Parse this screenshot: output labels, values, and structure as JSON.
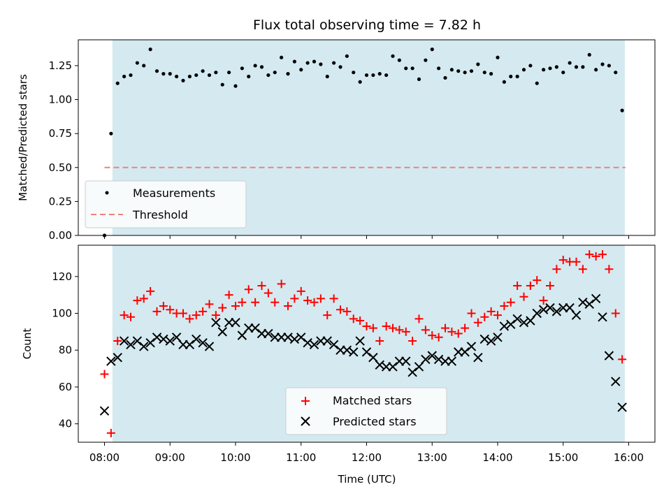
{
  "chart_data": [
    {
      "type": "scatter",
      "title": "Flux total observing time = 7.82 h",
      "xlabel": "",
      "ylabel": "Matched/Predicted stars",
      "xlim": [
        7.6,
        16.4
      ],
      "ylim": [
        0,
        1.44
      ],
      "yticks": [
        0,
        0.25,
        0.5,
        0.75,
        1.0,
        1.25
      ],
      "ytick_labels": [
        "0.00",
        "0.25",
        "0.50",
        "0.75",
        "1.00",
        "1.25"
      ],
      "shaded_span": [
        8.12,
        15.94
      ],
      "shade_color": "#d4eaf0",
      "threshold": {
        "name": "Threshold",
        "y": 0.5,
        "x_range": [
          8.0,
          15.95
        ],
        "color": "#f08080",
        "style": "dashed"
      },
      "legend_position": "lower-left",
      "series": [
        {
          "name": "Measurements",
          "marker": "dot",
          "color": "#000000",
          "x": [
            8.0,
            8.1,
            8.2,
            8.3,
            8.4,
            8.5,
            8.6,
            8.7,
            8.8,
            8.9,
            9.0,
            9.1,
            9.2,
            9.3,
            9.4,
            9.5,
            9.6,
            9.7,
            9.8,
            9.9,
            10.0,
            10.1,
            10.2,
            10.3,
            10.4,
            10.5,
            10.6,
            10.7,
            10.8,
            10.9,
            11.0,
            11.1,
            11.2,
            11.3,
            11.4,
            11.5,
            11.6,
            11.7,
            11.8,
            11.9,
            12.0,
            12.1,
            12.2,
            12.3,
            12.4,
            12.5,
            12.6,
            12.7,
            12.8,
            12.9,
            13.0,
            13.1,
            13.2,
            13.3,
            13.4,
            13.5,
            13.6,
            13.7,
            13.8,
            13.9,
            14.0,
            14.1,
            14.2,
            14.3,
            14.4,
            14.5,
            14.6,
            14.7,
            14.8,
            14.9,
            15.0,
            15.1,
            15.2,
            15.3,
            15.4,
            15.5,
            15.6,
            15.7,
            15.8,
            15.9
          ],
          "y": [
            0.0,
            0.75,
            1.12,
            1.17,
            1.18,
            1.27,
            1.25,
            1.37,
            1.21,
            1.19,
            1.19,
            1.17,
            1.14,
            1.17,
            1.18,
            1.21,
            1.18,
            1.2,
            1.11,
            1.2,
            1.1,
            1.23,
            1.17,
            1.25,
            1.24,
            1.18,
            1.2,
            1.31,
            1.19,
            1.28,
            1.22,
            1.27,
            1.28,
            1.26,
            1.17,
            1.27,
            1.24,
            1.32,
            1.2,
            1.13,
            1.18,
            1.18,
            1.19,
            1.18,
            1.32,
            1.29,
            1.23,
            1.23,
            1.15,
            1.29,
            1.37,
            1.23,
            1.16,
            1.22,
            1.21,
            1.2,
            1.21,
            1.26,
            1.2,
            1.19,
            1.31,
            1.13,
            1.17,
            1.17,
            1.22,
            1.25,
            1.12,
            1.22,
            1.23,
            1.24,
            1.2,
            1.27,
            1.24,
            1.24,
            1.33,
            1.22,
            1.26,
            1.25,
            1.2,
            0.92
          ]
        }
      ]
    },
    {
      "type": "scatter",
      "title": "",
      "xlabel": "Time (UTC)",
      "ylabel": "Count",
      "xlim": [
        7.6,
        16.4
      ],
      "ylim": [
        30,
        137
      ],
      "xticks": [
        8,
        9,
        10,
        11,
        12,
        13,
        14,
        15,
        16
      ],
      "xtick_labels": [
        "08:00",
        "09:00",
        "10:00",
        "11:00",
        "12:00",
        "13:00",
        "14:00",
        "15:00",
        "16:00"
      ],
      "yticks": [
        40,
        60,
        80,
        100,
        120
      ],
      "ytick_labels": [
        "40",
        "60",
        "80",
        "100",
        "120"
      ],
      "shaded_span": [
        8.12,
        15.94
      ],
      "legend_position": "lower-center",
      "series": [
        {
          "name": "Matched stars",
          "marker": "plus",
          "color": "#ff0000",
          "x": [
            8.0,
            8.1,
            8.2,
            8.3,
            8.4,
            8.5,
            8.6,
            8.7,
            8.8,
            8.9,
            9.0,
            9.1,
            9.2,
            9.3,
            9.4,
            9.5,
            9.6,
            9.7,
            9.8,
            9.9,
            10.0,
            10.1,
            10.2,
            10.3,
            10.4,
            10.5,
            10.6,
            10.7,
            10.8,
            10.9,
            11.0,
            11.1,
            11.2,
            11.3,
            11.4,
            11.5,
            11.6,
            11.7,
            11.8,
            11.9,
            12.0,
            12.1,
            12.2,
            12.3,
            12.4,
            12.5,
            12.6,
            12.7,
            12.8,
            12.9,
            13.0,
            13.1,
            13.2,
            13.3,
            13.4,
            13.5,
            13.6,
            13.7,
            13.8,
            13.9,
            14.0,
            14.1,
            14.2,
            14.3,
            14.4,
            14.5,
            14.6,
            14.7,
            14.8,
            14.9,
            15.0,
            15.1,
            15.2,
            15.3,
            15.4,
            15.5,
            15.6,
            15.7,
            15.8,
            15.9
          ],
          "y": [
            67,
            35,
            85,
            99,
            98,
            107,
            108,
            112,
            101,
            104,
            102,
            100,
            100,
            97,
            99,
            101,
            105,
            99,
            103,
            110,
            104,
            106,
            113,
            106,
            115,
            111,
            106,
            116,
            104,
            108,
            112,
            107,
            106,
            108,
            99,
            108,
            102,
            101,
            97,
            96,
            93,
            92,
            85,
            93,
            92,
            91,
            90,
            85,
            97,
            91,
            88,
            87,
            92,
            90,
            89,
            92,
            100,
            95,
            98,
            101,
            99,
            104,
            106,
            115,
            109,
            115,
            118,
            107,
            115,
            124,
            129,
            128,
            128,
            124,
            132,
            131,
            132,
            124,
            100,
            75
          ]
        },
        {
          "name": "Predicted stars",
          "marker": "x",
          "color": "#000000",
          "x": [
            8.0,
            8.1,
            8.2,
            8.3,
            8.4,
            8.5,
            8.6,
            8.7,
            8.8,
            8.9,
            9.0,
            9.1,
            9.2,
            9.3,
            9.4,
            9.5,
            9.6,
            9.7,
            9.8,
            9.9,
            10.0,
            10.1,
            10.2,
            10.3,
            10.4,
            10.5,
            10.6,
            10.7,
            10.8,
            10.9,
            11.0,
            11.1,
            11.2,
            11.3,
            11.4,
            11.5,
            11.6,
            11.7,
            11.8,
            11.9,
            12.0,
            12.1,
            12.2,
            12.3,
            12.4,
            12.5,
            12.6,
            12.7,
            12.8,
            12.9,
            13.0,
            13.1,
            13.2,
            13.3,
            13.4,
            13.5,
            13.6,
            13.7,
            13.8,
            13.9,
            14.0,
            14.1,
            14.2,
            14.3,
            14.4,
            14.5,
            14.6,
            14.7,
            14.8,
            14.9,
            15.0,
            15.1,
            15.2,
            15.3,
            15.4,
            15.5,
            15.6,
            15.7,
            15.8,
            15.9
          ],
          "y": [
            47,
            74,
            76,
            85,
            83,
            85,
            82,
            84,
            87,
            86,
            85,
            87,
            83,
            83,
            86,
            84,
            82,
            95,
            90,
            95,
            95,
            88,
            92,
            92,
            89,
            89,
            87,
            87,
            87,
            86,
            87,
            84,
            83,
            85,
            85,
            83,
            80,
            80,
            79,
            85,
            79,
            76,
            72,
            71,
            71,
            74,
            74,
            68,
            71,
            75,
            77,
            75,
            74,
            74,
            79,
            79,
            82,
            76,
            86,
            85,
            87,
            93,
            94,
            97,
            95,
            96,
            100,
            102,
            103,
            101,
            103,
            103,
            99,
            106,
            105,
            108,
            98,
            77,
            63,
            49
          ]
        }
      ]
    }
  ]
}
